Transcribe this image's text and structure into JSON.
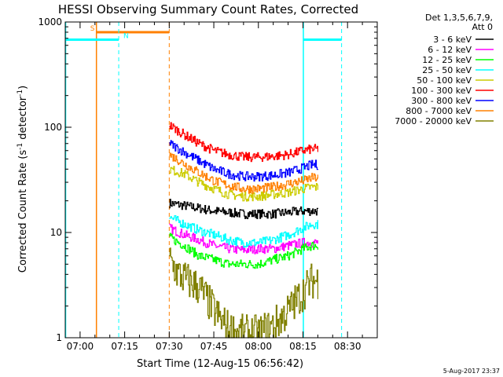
{
  "chart_data": {
    "type": "line",
    "title": "HESSI Observing Summary Count Rates, Corrected",
    "xlabel": "Start Time (12-Aug-15 06:56:42)",
    "ylabel_main": "Corrected Count Rate (s",
    "ylabel_sup1": "-1",
    "ylabel_mid": " detector",
    "ylabel_sup2": "-1",
    "ylabel_end": ")",
    "y_scale": "log",
    "ylim": [
      1,
      1000
    ],
    "xlim_minutes": [
      -5,
      30
    ],
    "x_ticks": [
      {
        "label": "07:00",
        "minutes": 0
      },
      {
        "label": "07:15",
        "minutes": 15
      },
      {
        "label": "07:30",
        "minutes": 30
      },
      {
        "label": "07:45",
        "minutes": 45
      },
      {
        "label": "08:00",
        "minutes": 60
      },
      {
        "label": "08:15",
        "minutes": 75
      },
      {
        "label": "08:30",
        "minutes": 90
      }
    ],
    "y_ticks": [
      {
        "label": "1",
        "value": 1
      },
      {
        "label": "10",
        "value": 10
      },
      {
        "label": "100",
        "value": 100
      },
      {
        "label": "1000",
        "value": 1000
      }
    ],
    "legend_header": [
      "Det 1,3,5,6,7,9,",
      "Att 0"
    ],
    "legend_position": "right",
    "series": [
      {
        "name": "3 - 6 keV",
        "color": "#000000",
        "x": [
          30,
          35,
          40,
          45,
          50,
          55,
          60,
          65,
          70,
          75,
          78,
          80
        ],
        "y": [
          19,
          18,
          17,
          16,
          15.5,
          15,
          15,
          15,
          15.5,
          16,
          16,
          16
        ]
      },
      {
        "name": "6 - 12 keV",
        "color": "#ff00ff",
        "x": [
          30,
          35,
          40,
          45,
          50,
          55,
          60,
          65,
          70,
          75,
          78,
          80
        ],
        "y": [
          11,
          9.5,
          8.5,
          7.5,
          7,
          6.8,
          7,
          7,
          7.5,
          8,
          8,
          8
        ]
      },
      {
        "name": "12 - 25 keV",
        "color": "#00ff00",
        "x": [
          30,
          35,
          40,
          45,
          50,
          55,
          60,
          65,
          70,
          75,
          78,
          80
        ],
        "y": [
          9,
          7.5,
          6,
          5.5,
          5,
          5,
          5,
          5.5,
          6,
          7,
          7.5,
          7.5
        ]
      },
      {
        "name": "25 - 50 keV",
        "color": "#00ffff",
        "x": [
          30,
          35,
          40,
          45,
          50,
          55,
          60,
          65,
          70,
          75,
          78,
          80
        ],
        "y": [
          14,
          12,
          10.5,
          9.5,
          8.5,
          8,
          8,
          8.5,
          9.5,
          11,
          12,
          12
        ]
      },
      {
        "name": "50 - 100 keV",
        "color": "#cccc00",
        "x": [
          30,
          35,
          40,
          45,
          50,
          55,
          60,
          65,
          70,
          75,
          78,
          80
        ],
        "y": [
          40,
          36,
          30,
          26,
          23,
          22,
          22,
          23,
          24,
          26,
          27,
          27
        ]
      },
      {
        "name": "100 - 300 keV",
        "color": "#ff0000",
        "x": [
          30,
          35,
          40,
          45,
          50,
          55,
          60,
          65,
          70,
          75,
          78,
          80
        ],
        "y": [
          105,
          85,
          70,
          60,
          55,
          52,
          52,
          53,
          55,
          60,
          62,
          62
        ]
      },
      {
        "name": "300 - 800 keV",
        "color": "#0000ff",
        "x": [
          30,
          35,
          40,
          45,
          50,
          55,
          60,
          65,
          70,
          75,
          78,
          80
        ],
        "y": [
          70,
          58,
          48,
          40,
          36,
          34,
          34,
          35,
          37,
          41,
          44,
          44
        ]
      },
      {
        "name": "800 - 7000 keV",
        "color": "#ff8000",
        "x": [
          30,
          35,
          40,
          45,
          50,
          55,
          60,
          65,
          70,
          75,
          78,
          80
        ],
        "y": [
          55,
          45,
          37,
          31,
          28,
          26,
          26,
          27,
          29,
          31,
          33,
          33
        ]
      },
      {
        "name": "7000 - 20000 keV",
        "color": "#808000",
        "x": [
          30,
          33,
          36,
          40,
          44,
          47,
          50,
          55,
          60,
          65,
          70,
          74,
          78,
          80
        ],
        "y": [
          5.5,
          4,
          3.5,
          3,
          2,
          1.5,
          1.2,
          1.1,
          1.1,
          1.3,
          1.8,
          2.5,
          3.5,
          3.5
        ]
      }
    ],
    "annotations": {
      "saa_label": "S",
      "night_label": "N",
      "saa_color": "#ff8000",
      "night_color": "#00ffff",
      "saa_value": 800,
      "night_value": 680,
      "saa_solid_at": 5.5,
      "saa_dashed_at": 30,
      "night_solid_at": [
        -5,
        75
      ],
      "night_dashed_at": [
        13,
        88
      ],
      "saa_bar": [
        5.5,
        30
      ],
      "night_bars": [
        [
          -5,
          13
        ],
        [
          75,
          88
        ]
      ]
    },
    "footer_timestamp": "5-Aug-2017 23:37"
  }
}
